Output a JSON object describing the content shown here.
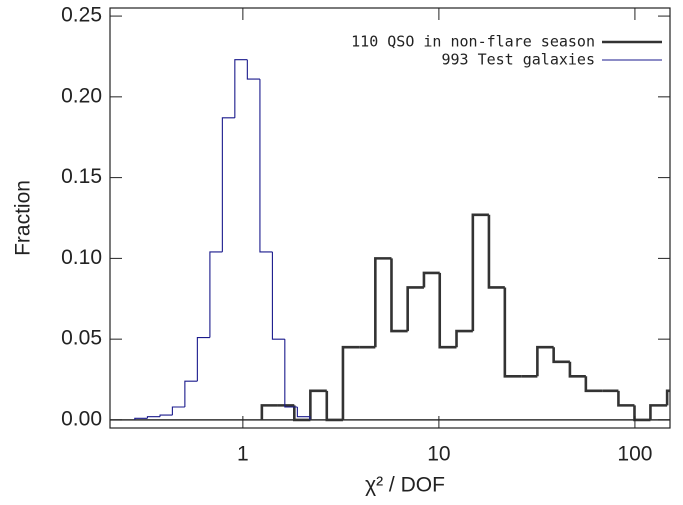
{
  "chart_data": {
    "type": "histogram",
    "xlabel": "χ² / DOF",
    "ylabel": "Fraction",
    "xscale": "log",
    "xlim": [
      0.21,
      151
    ],
    "ylim": [
      -0.005,
      0.255
    ],
    "xticks": [
      1,
      10,
      100
    ],
    "yticks": [
      {
        "value": 0,
        "label": "0.00"
      },
      {
        "value": 0.05,
        "label": "0.05"
      },
      {
        "value": 0.1,
        "label": "0.10"
      },
      0.15,
      {
        "value": 0.2,
        "label": "0.20"
      },
      0.25
    ],
    "legend": "upper right",
    "series": [
      {
        "name": "110 QSO in non-flare season",
        "color": "#333333",
        "bins": [
          1.25,
          1.51,
          1.83,
          2.21,
          2.68,
          3.24,
          3.92,
          4.74,
          5.73,
          6.93,
          8.39,
          10.1,
          12.3,
          14.9,
          18.0,
          21.7,
          26.3,
          31.8,
          38.5,
          46.6,
          56.2,
          68.1,
          82.4,
          99.5,
          120,
          146,
          176
        ],
        "values": [
          0.009,
          0.009,
          0,
          0.018,
          0,
          0.045,
          0.045,
          0.1,
          0.055,
          0.082,
          0.091,
          0.045,
          0.055,
          0.127,
          0.082,
          0.027,
          0.027,
          0.045,
          0.036,
          0.027,
          0.018,
          0.018,
          0.009,
          0,
          0.009,
          0.018
        ]
      },
      {
        "name": "993 Test galaxies",
        "color": "#1a1a8c",
        "bins": [
          0.281,
          0.326,
          0.378,
          0.437,
          0.506,
          0.586,
          0.679,
          0.786,
          0.91,
          1.054,
          1.222,
          1.415,
          1.637,
          1.897,
          2.198
        ],
        "values": [
          0.001,
          0.002,
          0.003,
          0.008,
          0.024,
          0.051,
          0.104,
          0.187,
          0.223,
          0.211,
          0.104,
          0.05,
          0.008,
          0.002
        ]
      }
    ]
  }
}
